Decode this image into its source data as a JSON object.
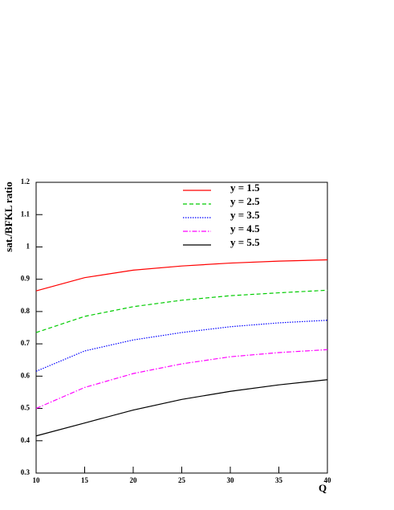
{
  "chart_data": {
    "type": "line",
    "y_label": "sat./BFKL ratio",
    "x_label": "Q",
    "x": [
      10,
      15,
      20,
      25,
      30,
      35,
      40
    ],
    "series": [
      {
        "name": "y = 1.5",
        "color": "#ff0000",
        "dash": "solid",
        "values": [
          0.864,
          0.905,
          0.928,
          0.941,
          0.95,
          0.956,
          0.96
        ]
      },
      {
        "name": "y = 2.5",
        "color": "#00cc00",
        "dash": "dashed",
        "values": [
          0.735,
          0.785,
          0.815,
          0.835,
          0.849,
          0.858,
          0.866
        ]
      },
      {
        "name": "y = 3.5",
        "color": "#0000ff",
        "dash": "dotted",
        "values": [
          0.615,
          0.678,
          0.712,
          0.735,
          0.753,
          0.765,
          0.773
        ]
      },
      {
        "name": "y = 4.5",
        "color": "#ff00ff",
        "dash": "dashdot",
        "values": [
          0.5,
          0.565,
          0.608,
          0.638,
          0.66,
          0.673,
          0.682
        ]
      },
      {
        "name": "y = 5.5",
        "color": "#000000",
        "dash": "solid",
        "values": [
          0.415,
          0.455,
          0.495,
          0.528,
          0.553,
          0.573,
          0.589
        ]
      }
    ],
    "xlim": [
      10,
      40
    ],
    "xticks": [
      10,
      15,
      20,
      25,
      30,
      35,
      40
    ],
    "ylim": [
      0.3,
      1.2
    ],
    "yticks": [
      0.3,
      0.4,
      0.5,
      0.6,
      0.7,
      0.8,
      0.9,
      1,
      1.1,
      1.2
    ],
    "legend": "top",
    "grid": false
  }
}
